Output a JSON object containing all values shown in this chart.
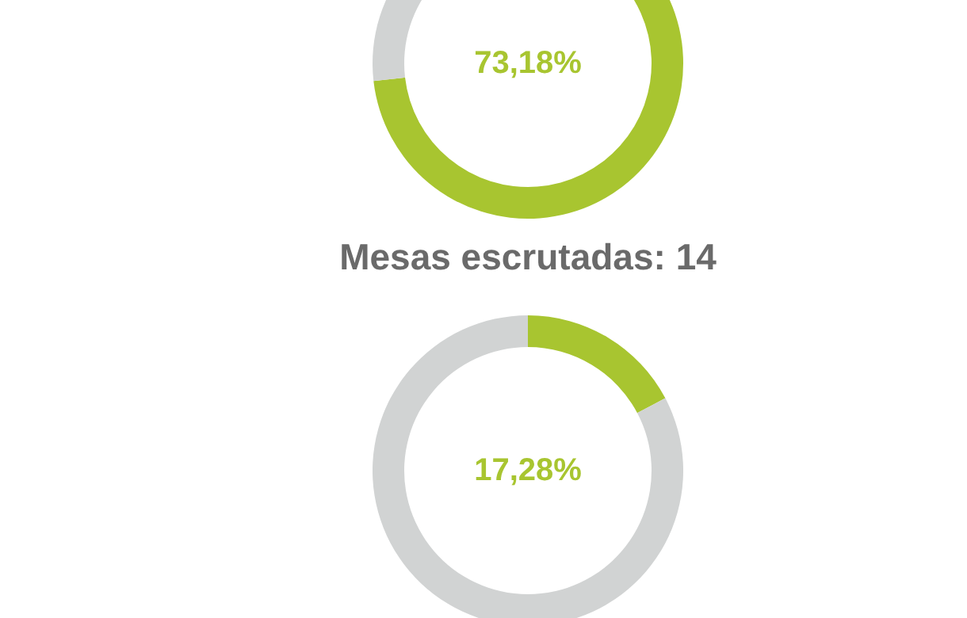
{
  "chart_data": [
    {
      "type": "donut",
      "categories": [
        null,
        null
      ],
      "values": [
        73.18,
        26.82
      ],
      "colors": [
        "#a8c530",
        "#d1d3d3"
      ],
      "annotations": [
        "73,18%"
      ]
    },
    {
      "type": "donut",
      "title": "Mesas escrutadas: 14",
      "categories": [
        null,
        null
      ],
      "values": [
        17.28,
        82.72
      ],
      "colors": [
        "#a8c530",
        "#d1d3d3"
      ],
      "annotations": [
        "17,28%"
      ]
    }
  ]
}
